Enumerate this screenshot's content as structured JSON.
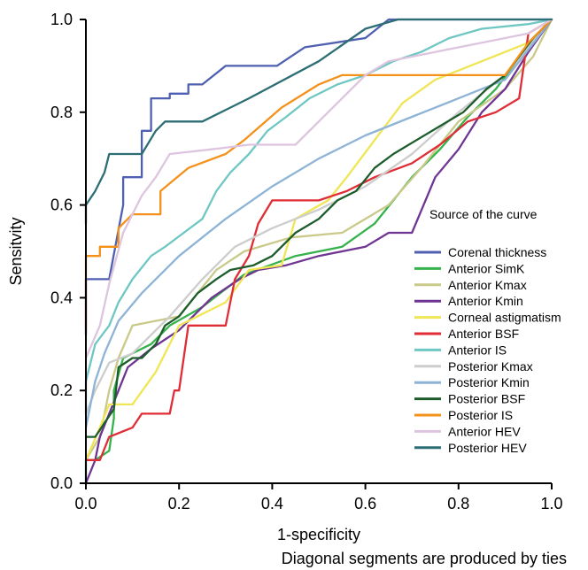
{
  "chart_data": {
    "type": "line",
    "xlabel": "1-specificity",
    "ylabel": "Sensitvity",
    "note": "Diagonal segments are produced by ties",
    "legend_title": "Source of the curve",
    "legend_position": "right-middle",
    "grid": false,
    "xlim": [
      0.0,
      1.0
    ],
    "ylim": [
      0.0,
      1.0
    ],
    "x_ticks": [
      "0.0",
      "0.2",
      "0.4",
      "0.6",
      "0.8",
      "1.0"
    ],
    "y_ticks": [
      "0.0",
      "0.2",
      "0.4",
      "0.6",
      "0.8",
      "1.0"
    ],
    "series": [
      {
        "name": "Corenal thickness",
        "color": "#4f5fb1",
        "points": [
          [
            0.0,
            0.32
          ],
          [
            0.0,
            0.44
          ],
          [
            0.03,
            0.44
          ],
          [
            0.05,
            0.44
          ],
          [
            0.08,
            0.6
          ],
          [
            0.08,
            0.66
          ],
          [
            0.12,
            0.66
          ],
          [
            0.12,
            0.76
          ],
          [
            0.14,
            0.76
          ],
          [
            0.14,
            0.83
          ],
          [
            0.18,
            0.83
          ],
          [
            0.18,
            0.84
          ],
          [
            0.22,
            0.84
          ],
          [
            0.22,
            0.86
          ],
          [
            0.25,
            0.86
          ],
          [
            0.3,
            0.9
          ],
          [
            0.41,
            0.9
          ],
          [
            0.47,
            0.94
          ],
          [
            0.6,
            0.96
          ],
          [
            0.65,
            1.0
          ],
          [
            0.9,
            1.0
          ],
          [
            1.0,
            1.0
          ]
        ]
      },
      {
        "name": "Anterior SimK",
        "color": "#35b24b",
        "points": [
          [
            0.0,
            0.0
          ],
          [
            0.0,
            0.05
          ],
          [
            0.02,
            0.05
          ],
          [
            0.05,
            0.07
          ],
          [
            0.06,
            0.14
          ],
          [
            0.06,
            0.2
          ],
          [
            0.08,
            0.27
          ],
          [
            0.14,
            0.3
          ],
          [
            0.18,
            0.34
          ],
          [
            0.25,
            0.38
          ],
          [
            0.34,
            0.45
          ],
          [
            0.45,
            0.49
          ],
          [
            0.55,
            0.51
          ],
          [
            0.62,
            0.56
          ],
          [
            0.7,
            0.66
          ],
          [
            0.76,
            0.72
          ],
          [
            0.82,
            0.79
          ],
          [
            0.88,
            0.85
          ],
          [
            0.94,
            0.93
          ],
          [
            1.0,
            1.0
          ]
        ]
      },
      {
        "name": "Anterior Kmax",
        "color": "#c9c98a",
        "points": [
          [
            0.0,
            0.05
          ],
          [
            0.03,
            0.1
          ],
          [
            0.05,
            0.2
          ],
          [
            0.07,
            0.27
          ],
          [
            0.1,
            0.34
          ],
          [
            0.2,
            0.36
          ],
          [
            0.28,
            0.46
          ],
          [
            0.34,
            0.5
          ],
          [
            0.44,
            0.53
          ],
          [
            0.55,
            0.54
          ],
          [
            0.65,
            0.6
          ],
          [
            0.72,
            0.68
          ],
          [
            0.8,
            0.78
          ],
          [
            0.9,
            0.85
          ],
          [
            0.96,
            0.92
          ],
          [
            1.0,
            1.0
          ]
        ]
      },
      {
        "name": "Anterior Kmin",
        "color": "#6f3592",
        "points": [
          [
            0.0,
            0.0
          ],
          [
            0.02,
            0.05
          ],
          [
            0.03,
            0.1
          ],
          [
            0.07,
            0.2
          ],
          [
            0.09,
            0.25
          ],
          [
            0.14,
            0.29
          ],
          [
            0.2,
            0.33
          ],
          [
            0.27,
            0.4
          ],
          [
            0.33,
            0.44
          ],
          [
            0.37,
            0.46
          ],
          [
            0.43,
            0.47
          ],
          [
            0.5,
            0.49
          ],
          [
            0.6,
            0.51
          ],
          [
            0.65,
            0.54
          ],
          [
            0.7,
            0.54
          ],
          [
            0.75,
            0.66
          ],
          [
            0.8,
            0.72
          ],
          [
            0.85,
            0.8
          ],
          [
            0.9,
            0.85
          ],
          [
            0.95,
            0.93
          ],
          [
            1.0,
            1.0
          ]
        ]
      },
      {
        "name": "Corneal astigmatism",
        "color": "#f0e655",
        "points": [
          [
            0.0,
            0.05
          ],
          [
            0.03,
            0.12
          ],
          [
            0.05,
            0.17
          ],
          [
            0.1,
            0.17
          ],
          [
            0.15,
            0.24
          ],
          [
            0.2,
            0.34
          ],
          [
            0.3,
            0.39
          ],
          [
            0.35,
            0.46
          ],
          [
            0.42,
            0.47
          ],
          [
            0.45,
            0.57
          ],
          [
            0.52,
            0.61
          ],
          [
            0.56,
            0.66
          ],
          [
            0.62,
            0.74
          ],
          [
            0.68,
            0.82
          ],
          [
            0.75,
            0.87
          ],
          [
            0.85,
            0.91
          ],
          [
            0.95,
            0.95
          ],
          [
            1.0,
            1.0
          ]
        ]
      },
      {
        "name": "Anterior BSF",
        "color": "#e02d35",
        "points": [
          [
            0.0,
            0.05
          ],
          [
            0.03,
            0.05
          ],
          [
            0.05,
            0.1
          ],
          [
            0.1,
            0.12
          ],
          [
            0.12,
            0.15
          ],
          [
            0.18,
            0.15
          ],
          [
            0.19,
            0.2
          ],
          [
            0.2,
            0.2
          ],
          [
            0.22,
            0.34
          ],
          [
            0.3,
            0.34
          ],
          [
            0.32,
            0.44
          ],
          [
            0.35,
            0.49
          ],
          [
            0.37,
            0.56
          ],
          [
            0.4,
            0.61
          ],
          [
            0.5,
            0.61
          ],
          [
            0.56,
            0.63
          ],
          [
            0.62,
            0.66
          ],
          [
            0.7,
            0.69
          ],
          [
            0.76,
            0.73
          ],
          [
            0.82,
            0.78
          ],
          [
            0.88,
            0.8
          ],
          [
            0.93,
            0.83
          ],
          [
            0.94,
            0.9
          ],
          [
            0.95,
            0.97
          ],
          [
            1.0,
            1.0
          ]
        ]
      },
      {
        "name": "Anterior IS",
        "color": "#6ec7c2",
        "points": [
          [
            0.0,
            0.15
          ],
          [
            0.0,
            0.22
          ],
          [
            0.02,
            0.3
          ],
          [
            0.05,
            0.34
          ],
          [
            0.07,
            0.39
          ],
          [
            0.1,
            0.44
          ],
          [
            0.14,
            0.49
          ],
          [
            0.17,
            0.51
          ],
          [
            0.21,
            0.54
          ],
          [
            0.25,
            0.57
          ],
          [
            0.28,
            0.63
          ],
          [
            0.31,
            0.67
          ],
          [
            0.35,
            0.71
          ],
          [
            0.39,
            0.76
          ],
          [
            0.43,
            0.79
          ],
          [
            0.48,
            0.83
          ],
          [
            0.54,
            0.86
          ],
          [
            0.6,
            0.88
          ],
          [
            0.66,
            0.91
          ],
          [
            0.72,
            0.93
          ],
          [
            0.78,
            0.96
          ],
          [
            0.85,
            0.98
          ],
          [
            0.95,
            0.99
          ],
          [
            1.0,
            1.0
          ]
        ]
      },
      {
        "name": "Posterior Kmax",
        "color": "#cdcdcd",
        "points": [
          [
            0.0,
            0.15
          ],
          [
            0.02,
            0.2
          ],
          [
            0.05,
            0.26
          ],
          [
            0.1,
            0.28
          ],
          [
            0.18,
            0.36
          ],
          [
            0.25,
            0.44
          ],
          [
            0.32,
            0.51
          ],
          [
            0.4,
            0.55
          ],
          [
            0.5,
            0.59
          ],
          [
            0.6,
            0.64
          ],
          [
            0.7,
            0.71
          ],
          [
            0.8,
            0.8
          ],
          [
            0.9,
            0.88
          ],
          [
            1.0,
            1.0
          ]
        ]
      },
      {
        "name": "Posterior Kmin",
        "color": "#8db3d6",
        "points": [
          [
            0.0,
            0.12
          ],
          [
            0.02,
            0.22
          ],
          [
            0.04,
            0.28
          ],
          [
            0.07,
            0.35
          ],
          [
            0.12,
            0.41
          ],
          [
            0.2,
            0.49
          ],
          [
            0.3,
            0.57
          ],
          [
            0.4,
            0.64
          ],
          [
            0.5,
            0.7
          ],
          [
            0.6,
            0.75
          ],
          [
            0.7,
            0.79
          ],
          [
            0.8,
            0.83
          ],
          [
            0.9,
            0.87
          ],
          [
            1.0,
            1.0
          ]
        ]
      },
      {
        "name": "Posterior BSF",
        "color": "#1d5c2b",
        "points": [
          [
            0.0,
            0.1
          ],
          [
            0.02,
            0.1
          ],
          [
            0.04,
            0.13
          ],
          [
            0.06,
            0.16
          ],
          [
            0.07,
            0.25
          ],
          [
            0.1,
            0.27
          ],
          [
            0.12,
            0.27
          ],
          [
            0.15,
            0.3
          ],
          [
            0.17,
            0.34
          ],
          [
            0.2,
            0.36
          ],
          [
            0.24,
            0.41
          ],
          [
            0.28,
            0.44
          ],
          [
            0.31,
            0.46
          ],
          [
            0.36,
            0.47
          ],
          [
            0.4,
            0.49
          ],
          [
            0.45,
            0.54
          ],
          [
            0.5,
            0.57
          ],
          [
            0.54,
            0.61
          ],
          [
            0.58,
            0.63
          ],
          [
            0.62,
            0.68
          ],
          [
            0.66,
            0.71
          ],
          [
            0.71,
            0.74
          ],
          [
            0.76,
            0.77
          ],
          [
            0.81,
            0.8
          ],
          [
            0.86,
            0.85
          ],
          [
            0.9,
            0.88
          ],
          [
            0.93,
            0.92
          ],
          [
            0.96,
            0.96
          ],
          [
            1.0,
            1.0
          ]
        ]
      },
      {
        "name": "Posterior IS",
        "color": "#f3911b",
        "points": [
          [
            0.0,
            0.33
          ],
          [
            0.0,
            0.49
          ],
          [
            0.03,
            0.49
          ],
          [
            0.03,
            0.51
          ],
          [
            0.07,
            0.51
          ],
          [
            0.07,
            0.55
          ],
          [
            0.1,
            0.58
          ],
          [
            0.16,
            0.58
          ],
          [
            0.16,
            0.63
          ],
          [
            0.22,
            0.68
          ],
          [
            0.3,
            0.71
          ],
          [
            0.34,
            0.74
          ],
          [
            0.42,
            0.81
          ],
          [
            0.5,
            0.86
          ],
          [
            0.55,
            0.88
          ],
          [
            0.68,
            0.88
          ],
          [
            0.9,
            0.88
          ],
          [
            0.95,
            0.95
          ],
          [
            1.0,
            1.0
          ]
        ]
      },
      {
        "name": "Anterior HEV",
        "color": "#ddc4df",
        "points": [
          [
            0.0,
            0.27
          ],
          [
            0.03,
            0.34
          ],
          [
            0.05,
            0.43
          ],
          [
            0.08,
            0.54
          ],
          [
            0.12,
            0.62
          ],
          [
            0.15,
            0.66
          ],
          [
            0.18,
            0.71
          ],
          [
            0.27,
            0.72
          ],
          [
            0.35,
            0.73
          ],
          [
            0.45,
            0.73
          ],
          [
            0.55,
            0.83
          ],
          [
            0.6,
            0.88
          ],
          [
            0.65,
            0.91
          ],
          [
            0.75,
            0.93
          ],
          [
            0.85,
            0.95
          ],
          [
            0.95,
            0.97
          ],
          [
            1.0,
            1.0
          ]
        ]
      },
      {
        "name": "Posterior HEV",
        "color": "#2c6e74",
        "points": [
          [
            0.0,
            0.56
          ],
          [
            0.0,
            0.6
          ],
          [
            0.02,
            0.63
          ],
          [
            0.04,
            0.67
          ],
          [
            0.05,
            0.71
          ],
          [
            0.12,
            0.71
          ],
          [
            0.15,
            0.76
          ],
          [
            0.17,
            0.78
          ],
          [
            0.25,
            0.78
          ],
          [
            0.35,
            0.83
          ],
          [
            0.5,
            0.91
          ],
          [
            0.6,
            0.98
          ],
          [
            0.67,
            1.0
          ],
          [
            0.95,
            1.0
          ],
          [
            1.0,
            1.0
          ]
        ]
      }
    ]
  }
}
